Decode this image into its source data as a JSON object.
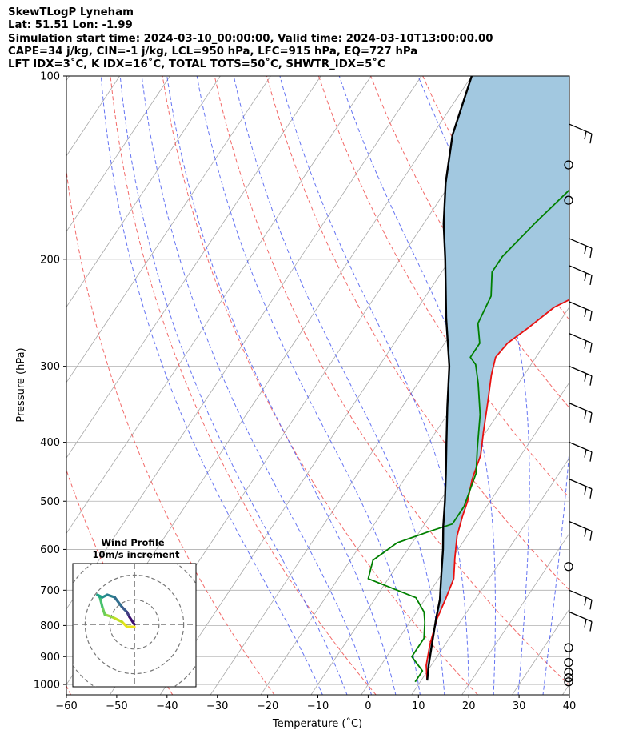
{
  "header": {
    "title": "SkewTLogP Lyneham",
    "location": "Lat: 51.51   Lon: -1.99",
    "times": "Simulation start time: 2024-03-10_00:00:00, Valid time: 2024-03-10T13:00:00.00",
    "indices1": "CAPE=34 j/kg, CIN=-1 j/kg, LCL=950 hPa, LFC=915 hPa, EQ=727 hPa",
    "indices2": "LFT IDX=3˚C, K IDX=16˚C, TOTAL TOTS=50˚C, SHWTR_IDX=5˚C"
  },
  "inset": {
    "title": "Wind Profile",
    "subtitle": "10m/s increment"
  },
  "chart_data": {
    "type": "line",
    "xlabel": "Temperature (˚C)",
    "ylabel": "Pressure (hPa)",
    "xlim": [
      -60,
      40
    ],
    "ylim": [
      1040,
      100
    ],
    "y_scale": "log",
    "x_ticks": [
      "−60",
      "−50",
      "−40",
      "−30",
      "−20",
      "−10",
      "0",
      "10",
      "20",
      "30",
      "40"
    ],
    "y_ticks": [
      "100",
      "200",
      "300",
      "400",
      "500",
      "600",
      "700",
      "800",
      "900",
      "1000"
    ],
    "grid": true,
    "series": [
      {
        "color": "#e8100f",
        "points": [
          [
            11,
            980
          ],
          [
            9,
            930
          ],
          [
            7,
            860
          ],
          [
            5,
            780
          ],
          [
            4,
            720
          ],
          [
            3,
            670
          ],
          [
            0.5,
            620
          ],
          [
            -2,
            570
          ],
          [
            -3.5,
            530
          ],
          [
            -4.5,
            500
          ],
          [
            -6.5,
            460
          ],
          [
            -8,
            420
          ],
          [
            -10.5,
            385
          ],
          [
            -13.5,
            345
          ],
          [
            -16.5,
            310
          ],
          [
            -18,
            290
          ],
          [
            -17.5,
            275
          ],
          [
            -15.5,
            260
          ],
          [
            -13,
            240
          ],
          [
            -10,
            230
          ],
          [
            -8,
            210
          ],
          [
            -4,
            185
          ],
          [
            0,
            165
          ],
          [
            3,
            148
          ],
          [
            5,
            135
          ],
          [
            7,
            122
          ],
          [
            9,
            112
          ],
          [
            11,
            102
          ],
          [
            12,
            99
          ]
        ]
      },
      {
        "color": "#008000",
        "points": [
          [
            9,
            990
          ],
          [
            9,
            950
          ],
          [
            5,
            900
          ],
          [
            5,
            840
          ],
          [
            3,
            790
          ],
          [
            1.5,
            760
          ],
          [
            -2,
            720
          ],
          [
            -14,
            670
          ],
          [
            -15.5,
            625
          ],
          [
            -13,
            585
          ],
          [
            -8,
            560
          ],
          [
            -4.5,
            545
          ],
          [
            -4.5,
            510
          ],
          [
            -6.5,
            450
          ],
          [
            -9.5,
            410
          ],
          [
            -13.5,
            360
          ],
          [
            -18,
            320
          ],
          [
            -21,
            298
          ],
          [
            -23,
            290
          ],
          [
            -23,
            275
          ],
          [
            -26,
            255
          ],
          [
            -27,
            230
          ],
          [
            -30,
            210
          ],
          [
            -30,
            198
          ],
          [
            -28,
            175
          ],
          [
            -25,
            150
          ],
          [
            -21,
            130
          ],
          [
            -18,
            118
          ],
          [
            -15,
            108
          ],
          [
            -13,
            100
          ]
        ]
      },
      {
        "color": "#000000",
        "points": [
          [
            11.2,
            985
          ],
          [
            9.5,
            930
          ],
          [
            7.4,
            860
          ],
          [
            4.8,
            780
          ],
          [
            3,
            725
          ],
          [
            0,
            660
          ],
          [
            -3,
            600
          ],
          [
            -6,
            550
          ],
          [
            -9,
            500
          ],
          [
            -12.5,
            450
          ],
          [
            -16.5,
            400
          ],
          [
            -21,
            350
          ],
          [
            -26,
            300
          ],
          [
            -33,
            250
          ],
          [
            -41,
            200
          ],
          [
            -46,
            175
          ],
          [
            -51,
            150
          ],
          [
            -56,
            125
          ],
          [
            -60,
            100
          ]
        ]
      }
    ],
    "dry_adiabats_K": [
      213,
      233,
      253,
      273,
      293,
      313,
      333,
      353,
      373,
      393,
      413,
      433,
      453
    ],
    "moist_adiabats_C": [
      -10,
      -5,
      0,
      5,
      10,
      15,
      20,
      25,
      30,
      35
    ],
    "wind_barbs_hPa": [
      120,
      185,
      205,
      235,
      265,
      300,
      345,
      400,
      460,
      540,
      700,
      760
    ],
    "calm_winds_hPa": [
      140,
      160,
      640,
      870,
      920,
      955,
      975,
      990
    ],
    "hodograph": {
      "xlim": [
        -25,
        25
      ],
      "ylim": [
        -25,
        25
      ],
      "rings_ms": [
        10,
        20,
        30
      ],
      "u": [
        0,
        -1,
        -3,
        -5,
        -9,
        -12,
        -13,
        -14,
        -15,
        -13,
        -11,
        -8,
        -5,
        -3,
        -2,
        0
      ],
      "v": [
        -1,
        -1,
        -1,
        1,
        3,
        4,
        7,
        11,
        12,
        11,
        12,
        11,
        7,
        5,
        3,
        0
      ]
    }
  }
}
